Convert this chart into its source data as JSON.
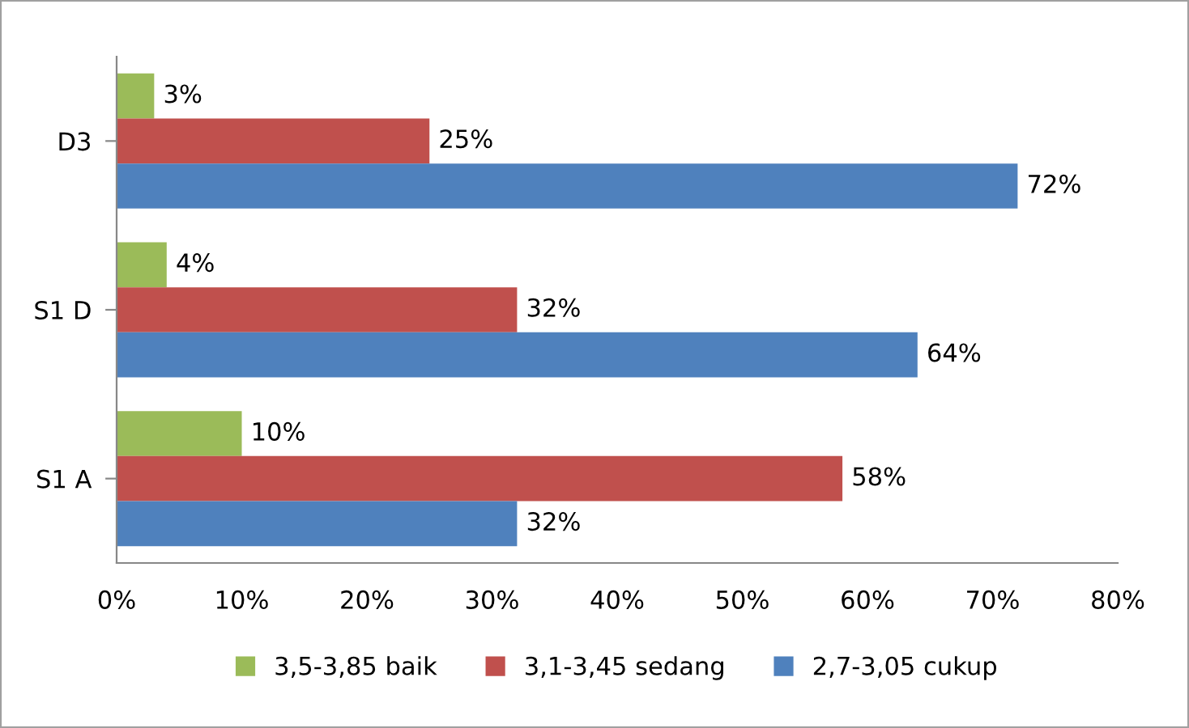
{
  "chart_data": {
    "type": "bar",
    "orientation": "horizontal",
    "categories": [
      "D3",
      "S1 D",
      "S1 A"
    ],
    "series": [
      {
        "name": "3,5-3,85 baik",
        "color": "#9bbb59",
        "values": [
          3,
          4,
          10
        ],
        "value_labels": [
          "3%",
          "4%",
          "10%"
        ]
      },
      {
        "name": "3,1-3,45 sedang",
        "color": "#c0504d",
        "values": [
          25,
          32,
          58
        ],
        "value_labels": [
          "25%",
          "32%",
          "58%"
        ]
      },
      {
        "name": "2,7-3,05 cukup",
        "color": "#4f81bd",
        "values": [
          72,
          64,
          32
        ],
        "value_labels": [
          "72%",
          "64%",
          "32%"
        ]
      }
    ],
    "xlim": [
      0,
      80
    ],
    "xticks": [
      {
        "value": 0,
        "label": "0%"
      },
      {
        "value": 10,
        "label": "10%"
      },
      {
        "value": 20,
        "label": "20%"
      },
      {
        "value": 30,
        "label": "30%"
      },
      {
        "value": 40,
        "label": "40%"
      },
      {
        "value": 50,
        "label": "50%"
      },
      {
        "value": 60,
        "label": "60%"
      },
      {
        "value": 70,
        "label": "70%"
      },
      {
        "value": 80,
        "label": "80%"
      }
    ],
    "grid": false,
    "legend": "bottom"
  }
}
